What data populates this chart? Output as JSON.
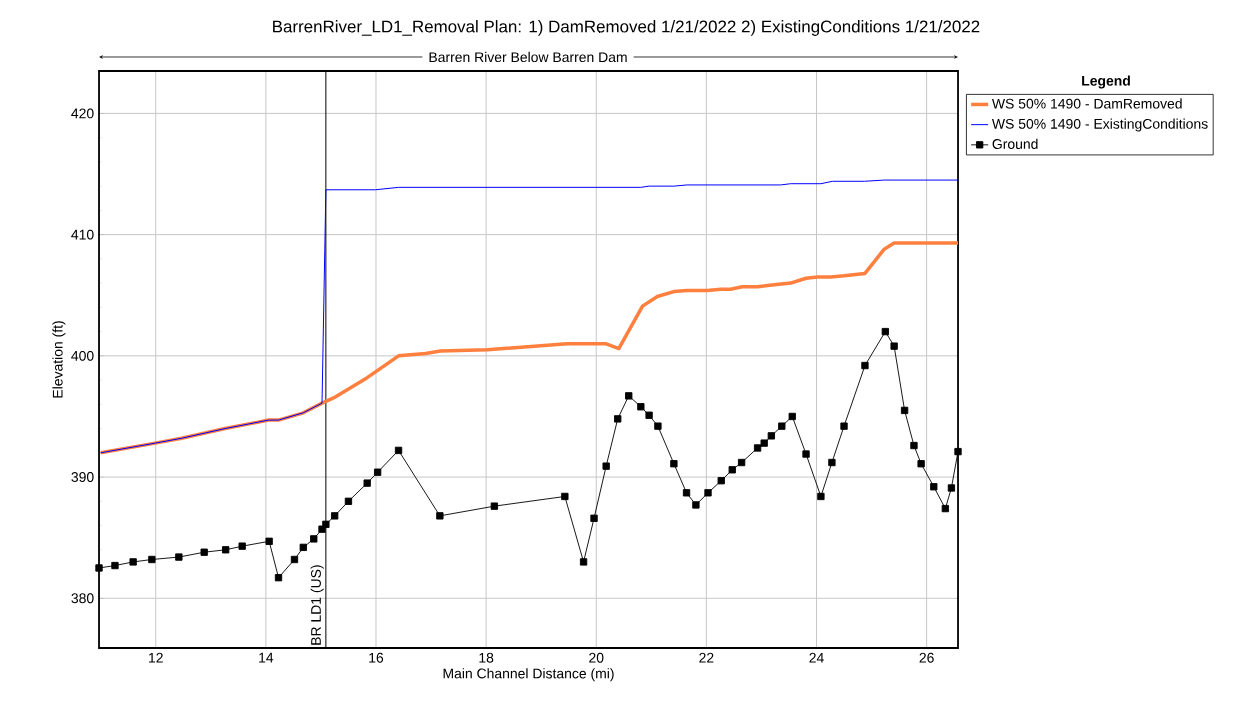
{
  "chart_data": {
    "type": "line",
    "title": "BarrenRiver_LD1_Removal      Plan:   1) DamRemoved    1/21/2022    2) ExistingConditions    1/21/2022",
    "subtitle": "Barren River Below Barren Dam",
    "xlabel": "Main Channel Distance (mi)",
    "ylabel": "Elevation (ft)",
    "legend_title": "Legend",
    "legend": "top right",
    "grid": true,
    "xlim": [
      10.97,
      26.57
    ],
    "ylim": [
      375.9,
      423.5
    ],
    "xticks": [
      12,
      14,
      16,
      18,
      20,
      22,
      24,
      26
    ],
    "yticks": [
      380,
      390,
      400,
      410,
      420
    ],
    "ref_lines": [
      {
        "axis": "x",
        "value": 15.09,
        "label": "BR LD1 (US)",
        "color": "#000000"
      }
    ],
    "series": [
      {
        "name": "WS 50% 1490 - DamRemoved",
        "color": "#ff7f3f",
        "marker": "none",
        "x": [
          11.0,
          11.99,
          12.47,
          13.26,
          14.05,
          14.23,
          14.68,
          15.02,
          15.26,
          15.84,
          16.41,
          16.9,
          17.17,
          18.02,
          19.47,
          20.17,
          20.41,
          20.84,
          21.11,
          21.41,
          21.65,
          22.02,
          22.26,
          22.44,
          22.65,
          22.93,
          23.11,
          23.53,
          23.81,
          24.02,
          24.26,
          24.5,
          24.88,
          25.23,
          25.41,
          26.57
        ],
        "values": [
          392.0,
          392.8,
          393.2,
          394.0,
          394.7,
          394.7,
          395.3,
          396.1,
          396.6,
          398.2,
          400.0,
          400.2,
          400.4,
          400.5,
          401.0,
          401.0,
          400.6,
          404.1,
          404.9,
          405.3,
          405.4,
          405.4,
          405.5,
          405.5,
          405.7,
          405.7,
          405.8,
          406.0,
          406.4,
          406.5,
          406.5,
          406.6,
          406.8,
          408.8,
          409.3,
          409.3
        ]
      },
      {
        "name": "WS 50% 1490 - ExistingConditions",
        "color": "#0000ff",
        "marker": "none",
        "x": [
          11.0,
          11.99,
          12.47,
          13.26,
          14.05,
          14.23,
          14.68,
          15.02,
          15.09,
          15.99,
          16.41,
          20.81,
          20.96,
          21.41,
          21.65,
          23.35,
          23.53,
          24.08,
          24.29,
          24.87,
          25.23,
          26.57
        ],
        "values": [
          392.0,
          392.8,
          393.2,
          394.0,
          394.7,
          394.7,
          395.3,
          396.1,
          413.7,
          413.7,
          413.9,
          413.9,
          414.0,
          414.0,
          414.1,
          414.1,
          414.2,
          414.2,
          414.4,
          414.4,
          414.5,
          414.5
        ]
      },
      {
        "name": "Ground",
        "color": "#000000",
        "marker": "square",
        "x": [
          10.97,
          11.26,
          11.59,
          11.93,
          12.42,
          12.88,
          13.27,
          13.57,
          14.06,
          14.23,
          14.52,
          14.68,
          14.87,
          15.02,
          15.09,
          15.25,
          15.5,
          15.84,
          16.03,
          16.41,
          17.16,
          18.15,
          19.43,
          19.77,
          19.96,
          20.18,
          20.39,
          20.59,
          20.81,
          20.96,
          21.12,
          21.41,
          21.64,
          21.81,
          22.03,
          22.27,
          22.47,
          22.64,
          22.93,
          23.05,
          23.18,
          23.37,
          23.56,
          23.81,
          24.08,
          24.28,
          24.5,
          24.88,
          25.25,
          25.41,
          25.6,
          25.77,
          25.9,
          26.13,
          26.34,
          26.45,
          26.57
        ],
        "values": [
          382.5,
          382.7,
          383.0,
          383.2,
          383.4,
          383.8,
          384.0,
          384.3,
          384.7,
          381.7,
          383.2,
          384.2,
          384.9,
          385.7,
          386.1,
          386.8,
          388.0,
          389.5,
          390.4,
          392.2,
          386.8,
          387.6,
          388.4,
          383.0,
          386.6,
          390.9,
          394.8,
          396.7,
          395.8,
          395.1,
          394.2,
          391.1,
          388.7,
          387.7,
          388.7,
          389.7,
          390.6,
          391.2,
          392.4,
          392.8,
          393.4,
          394.2,
          395.0,
          391.9,
          388.4,
          391.2,
          394.2,
          399.2,
          402.0,
          400.8,
          395.5,
          392.6,
          391.1,
          389.2,
          387.4,
          389.1,
          392.1
        ]
      }
    ]
  }
}
